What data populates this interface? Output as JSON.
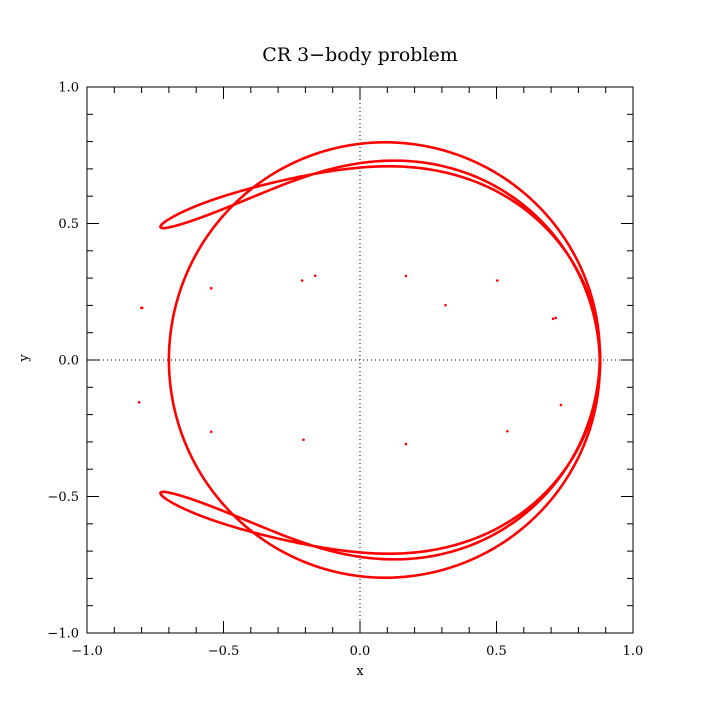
{
  "chart_data": {
    "type": "line",
    "title": "CR 3−body problem",
    "xlabel": "x",
    "ylabel": "y",
    "xlim": [
      -1.0,
      1.0
    ],
    "ylim": [
      -1.0,
      1.0
    ],
    "x_ticks": [
      -1.0,
      -0.5,
      0.0,
      0.5,
      1.0
    ],
    "y_ticks": [
      -1.0,
      -0.5,
      0.0,
      0.5,
      1.0
    ],
    "x_tick_labels": [
      "−1.0",
      "−0.5",
      "0.0",
      "0.5",
      "1.0"
    ],
    "y_tick_labels": [
      "−1.0",
      "−0.5",
      "0.0",
      "0.5",
      "1.0"
    ],
    "minor_tick_step": 0.1,
    "zero_lines": "dotted",
    "grid": false,
    "legend": "none",
    "series": [
      {
        "color": "#ff0000",
        "orbit": {
          "r0": 0.88,
          "dr": 0.09,
          "lobes": 5,
          "omega": -4,
          "turns": 2
        },
        "x": [
          0.88,
          0.707,
          0.313,
          -0.164,
          -0.545,
          -0.798,
          -0.809,
          -0.545,
          -0.207,
          0.168,
          0.54,
          0.736,
          0.717,
          0.503,
          0.168,
          -0.212,
          -0.545,
          -0.801
        ],
        "y": [
          0.0,
          0.151,
          0.201,
          0.309,
          0.263,
          0.191,
          -0.155,
          -0.263,
          -0.292,
          -0.308,
          -0.261,
          -0.165,
          0.154,
          0.291,
          0.308,
          0.291,
          0.263,
          0.191
        ]
      }
    ]
  }
}
